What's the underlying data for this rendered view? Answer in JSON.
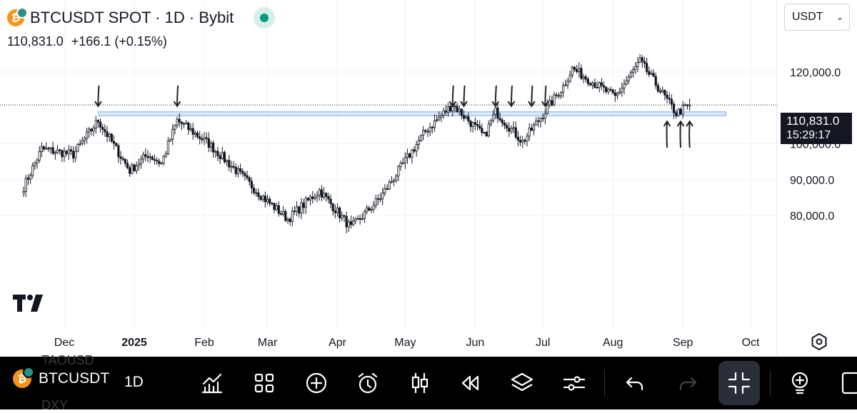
{
  "header": {
    "title": "BTCUSDT SPOT · 1D · Bybit",
    "price": "110,831.0",
    "change": "+166.1 (+0.15%)",
    "coin_glyph": "₿"
  },
  "currency_select": {
    "value": "USDT"
  },
  "price_tag": {
    "price": "110,831.0",
    "countdown": "15:29:17"
  },
  "colors": {
    "zone_fill": "#dbeafb",
    "zone_border": "#7aaee8",
    "candle": "#131722",
    "status": "#089981",
    "coin": "#f7931a"
  },
  "chart_data": {
    "type": "candlestick",
    "y_ticks": [
      {
        "value": 120000,
        "label": "120,000.0"
      },
      {
        "value": 100000,
        "label": "100,000.0"
      },
      {
        "value": 90000,
        "label": "90,000.0"
      },
      {
        "value": 80000,
        "label": "80,000.0"
      }
    ],
    "x_ticks": [
      {
        "date": "2024-12-01",
        "label": "Dec",
        "bold": false
      },
      {
        "date": "2025-01-01",
        "label": "2025",
        "bold": true
      },
      {
        "date": "2025-02-01",
        "label": "Feb",
        "bold": false
      },
      {
        "date": "2025-03-01",
        "label": "Mar",
        "bold": false
      },
      {
        "date": "2025-04-01",
        "label": "Apr",
        "bold": false
      },
      {
        "date": "2025-05-01",
        "label": "May",
        "bold": false
      },
      {
        "date": "2025-06-01",
        "label": "Jun",
        "bold": false
      },
      {
        "date": "2025-07-01",
        "label": "Jul",
        "bold": false
      },
      {
        "date": "2025-08-01",
        "label": "Aug",
        "bold": false
      },
      {
        "date": "2025-09-01",
        "label": "Sep",
        "bold": false
      },
      {
        "date": "2025-10-01",
        "label": "Oct",
        "bold": false
      }
    ],
    "last_price": 110831.0,
    "zone": {
      "from": 107800,
      "to": 108900
    },
    "anchors": [
      {
        "date": "2024-11-13",
        "close": 88000
      },
      {
        "date": "2024-11-21",
        "close": 98500
      },
      {
        "date": "2024-12-05",
        "close": 97000
      },
      {
        "date": "2024-12-16",
        "close": 106500
      },
      {
        "date": "2024-12-30",
        "close": 92500
      },
      {
        "date": "2025-01-07",
        "close": 97000
      },
      {
        "date": "2025-01-13",
        "close": 94500
      },
      {
        "date": "2025-01-20",
        "close": 106500
      },
      {
        "date": "2025-02-03",
        "close": 100000
      },
      {
        "date": "2025-02-28",
        "close": 84500
      },
      {
        "date": "2025-03-10",
        "close": 79000
      },
      {
        "date": "2025-03-24",
        "close": 87000
      },
      {
        "date": "2025-04-07",
        "close": 76500
      },
      {
        "date": "2025-04-20",
        "close": 85000
      },
      {
        "date": "2025-05-10",
        "close": 103500
      },
      {
        "date": "2025-05-22",
        "close": 111000
      },
      {
        "date": "2025-06-05",
        "close": 102000
      },
      {
        "date": "2025-06-10",
        "close": 109000
      },
      {
        "date": "2025-06-22",
        "close": 100500
      },
      {
        "date": "2025-07-10",
        "close": 116000
      },
      {
        "date": "2025-07-14",
        "close": 121000
      },
      {
        "date": "2025-08-02",
        "close": 113000
      },
      {
        "date": "2025-08-13",
        "close": 123000
      },
      {
        "date": "2025-08-29",
        "close": 108500
      },
      {
        "date": "2025-09-04",
        "close": 110831
      }
    ],
    "marked_dates": {
      "resistance": [
        "2024-12-16",
        "2025-01-20",
        "2025-05-22",
        "2025-05-27",
        "2025-06-10",
        "2025-06-17",
        "2025-06-26",
        "2025-07-02"
      ],
      "support": [
        "2025-08-25",
        "2025-08-31",
        "2025-09-04"
      ]
    }
  },
  "toolbar": {
    "symbol": "BTCUSDT",
    "interval": "1D",
    "ghost_top": "TAOUSD",
    "ghost_bottom": "DXY"
  }
}
